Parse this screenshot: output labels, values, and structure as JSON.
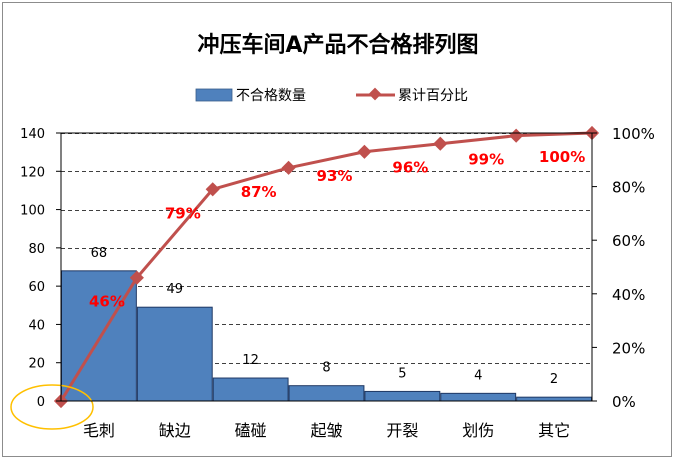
{
  "chart_data": {
    "type": "bar",
    "title": "冲压车间A产品不合格排列图",
    "categories": [
      "毛刺",
      "缺边",
      "磕碰",
      "起皱",
      "开裂",
      "划伤",
      "其它"
    ],
    "series": [
      {
        "name": "不合格数量",
        "type": "bar",
        "axis": "left",
        "values": [
          68,
          49,
          12,
          8,
          5,
          4,
          2
        ],
        "data_labels": [
          "68",
          "49",
          "12",
          "8",
          "5",
          "4",
          "2"
        ],
        "color": "#4f81bd"
      },
      {
        "name": "累计百分比",
        "type": "line",
        "axis": "right",
        "origin_value": 0,
        "values": [
          46,
          79,
          87,
          93,
          96,
          99,
          100
        ],
        "data_labels": [
          "46%",
          "79%",
          "87%",
          "93%",
          "96%",
          "99%",
          "100%"
        ],
        "color": "#c0504d",
        "label_color": "#ff0000"
      }
    ],
    "y_left": {
      "ylim": [
        0,
        140
      ],
      "ticks": [
        "0",
        "20",
        "40",
        "60",
        "80",
        "100",
        "120",
        "140"
      ]
    },
    "y_right": {
      "ylim": [
        0,
        100
      ],
      "ticks": [
        "0%",
        "20%",
        "40%",
        "60%",
        "80%",
        "100%"
      ]
    },
    "grid": "horizontal-dashed",
    "legend_placement": "top-center",
    "highlight_origin": true
  }
}
